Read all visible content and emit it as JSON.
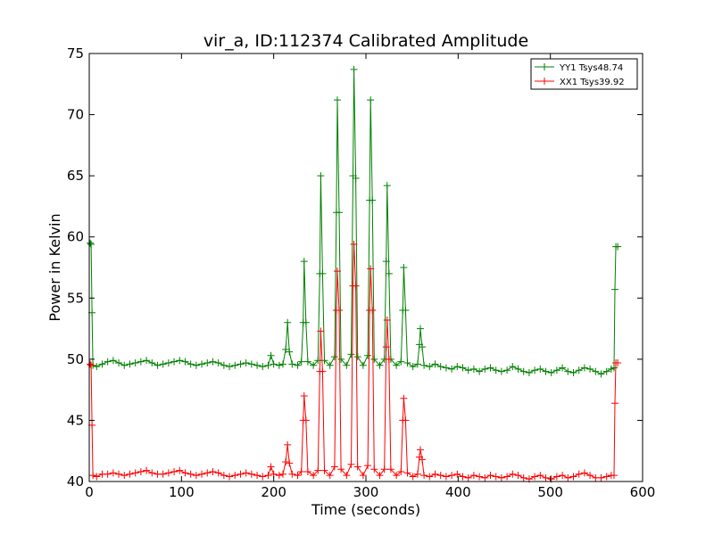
{
  "chart_data": {
    "type": "line",
    "title": "vir_a, ID:112374 Calibrated Amplitude",
    "xlabel": "Time (seconds)",
    "ylabel": "Power in Kelvin",
    "xlim": [
      0,
      600
    ],
    "ylim": [
      40,
      75
    ],
    "xticks": [
      "0",
      "100",
      "200",
      "300",
      "400",
      "500",
      "600"
    ],
    "yticks": [
      "40",
      "45",
      "50",
      "55",
      "60",
      "65",
      "70",
      "75"
    ],
    "grid": false,
    "legend_position": "top-right",
    "marker": "plus",
    "series": [
      {
        "name": "YY1 Tsys48.74",
        "color": "#008000",
        "points": [
          [
            1,
            59.5
          ],
          [
            2,
            59.4
          ],
          [
            3,
            53.8
          ],
          [
            4,
            49.5
          ],
          [
            8,
            49.4
          ],
          [
            14,
            49.6
          ],
          [
            20,
            49.8
          ],
          [
            26,
            49.9
          ],
          [
            32,
            49.7
          ],
          [
            38,
            49.5
          ],
          [
            44,
            49.6
          ],
          [
            50,
            49.7
          ],
          [
            56,
            49.8
          ],
          [
            62,
            49.9
          ],
          [
            68,
            49.7
          ],
          [
            74,
            49.5
          ],
          [
            80,
            49.6
          ],
          [
            86,
            49.7
          ],
          [
            92,
            49.8
          ],
          [
            98,
            49.9
          ],
          [
            104,
            49.8
          ],
          [
            110,
            49.6
          ],
          [
            116,
            49.5
          ],
          [
            122,
            49.6
          ],
          [
            128,
            49.7
          ],
          [
            134,
            49.8
          ],
          [
            140,
            49.7
          ],
          [
            146,
            49.5
          ],
          [
            152,
            49.4
          ],
          [
            158,
            49.5
          ],
          [
            164,
            49.6
          ],
          [
            170,
            49.7
          ],
          [
            176,
            49.6
          ],
          [
            182,
            49.5
          ],
          [
            188,
            49.4
          ],
          [
            194,
            49.5
          ],
          [
            197,
            50.3
          ],
          [
            200,
            49.6
          ],
          [
            206,
            49.5
          ],
          [
            210,
            49.6
          ],
          [
            213,
            50.8
          ],
          [
            215,
            53.0
          ],
          [
            217,
            50.6
          ],
          [
            220,
            49.6
          ],
          [
            226,
            49.5
          ],
          [
            230,
            49.8
          ],
          [
            232,
            53.0
          ],
          [
            233,
            58.0
          ],
          [
            235,
            53.0
          ],
          [
            237,
            49.8
          ],
          [
            243,
            49.5
          ],
          [
            248,
            49.9
          ],
          [
            250,
            57.0
          ],
          [
            251,
            65.0
          ],
          [
            253,
            57.0
          ],
          [
            255,
            49.9
          ],
          [
            261,
            49.5
          ],
          [
            266,
            50.2
          ],
          [
            268,
            62.0
          ],
          [
            269,
            71.2
          ],
          [
            271,
            62.0
          ],
          [
            273,
            50.0
          ],
          [
            279,
            49.5
          ],
          [
            284,
            50.4
          ],
          [
            286,
            65.0
          ],
          [
            287,
            73.7
          ],
          [
            289,
            64.8
          ],
          [
            291,
            50.2
          ],
          [
            297,
            49.5
          ],
          [
            302,
            50.3
          ],
          [
            304,
            63.0
          ],
          [
            305,
            71.2
          ],
          [
            307,
            63.0
          ],
          [
            309,
            50.0
          ],
          [
            315,
            49.5
          ],
          [
            320,
            50.0
          ],
          [
            322,
            58.0
          ],
          [
            323,
            64.2
          ],
          [
            325,
            57.0
          ],
          [
            327,
            50.0
          ],
          [
            333,
            49.5
          ],
          [
            338,
            49.8
          ],
          [
            340,
            54.0
          ],
          [
            341,
            57.5
          ],
          [
            343,
            54.0
          ],
          [
            345,
            49.7
          ],
          [
            351,
            49.4
          ],
          [
            356,
            49.6
          ],
          [
            358,
            51.2
          ],
          [
            359,
            52.5
          ],
          [
            361,
            51.0
          ],
          [
            363,
            49.5
          ],
          [
            369,
            49.4
          ],
          [
            375,
            49.6
          ],
          [
            381,
            49.4
          ],
          [
            387,
            49.3
          ],
          [
            393,
            49.2
          ],
          [
            399,
            49.4
          ],
          [
            405,
            49.3
          ],
          [
            411,
            49.1
          ],
          [
            417,
            49.2
          ],
          [
            423,
            49.0
          ],
          [
            429,
            49.2
          ],
          [
            435,
            49.3
          ],
          [
            441,
            49.1
          ],
          [
            447,
            49.0
          ],
          [
            453,
            49.1
          ],
          [
            459,
            49.4
          ],
          [
            465,
            49.2
          ],
          [
            471,
            49.0
          ],
          [
            477,
            48.9
          ],
          [
            483,
            49.1
          ],
          [
            489,
            49.2
          ],
          [
            495,
            49.0
          ],
          [
            501,
            48.9
          ],
          [
            507,
            49.1
          ],
          [
            513,
            49.3
          ],
          [
            519,
            49.0
          ],
          [
            525,
            48.9
          ],
          [
            531,
            49.1
          ],
          [
            537,
            49.3
          ],
          [
            543,
            49.2
          ],
          [
            549,
            49.0
          ],
          [
            555,
            48.8
          ],
          [
            561,
            49.0
          ],
          [
            566,
            49.2
          ],
          [
            569,
            49.3
          ],
          [
            570,
            55.7
          ],
          [
            571,
            59.2
          ],
          [
            573,
            59.2
          ]
        ]
      },
      {
        "name": "XX1 Tsys39.92",
        "color": "#ff0000",
        "points": [
          [
            1,
            49.6
          ],
          [
            2,
            49.5
          ],
          [
            3,
            44.6
          ],
          [
            4,
            40.5
          ],
          [
            8,
            40.4
          ],
          [
            14,
            40.6
          ],
          [
            20,
            40.6
          ],
          [
            26,
            40.7
          ],
          [
            32,
            40.6
          ],
          [
            38,
            40.5
          ],
          [
            44,
            40.6
          ],
          [
            50,
            40.7
          ],
          [
            56,
            40.8
          ],
          [
            62,
            40.9
          ],
          [
            68,
            40.7
          ],
          [
            74,
            40.6
          ],
          [
            80,
            40.6
          ],
          [
            86,
            40.7
          ],
          [
            92,
            40.8
          ],
          [
            98,
            40.9
          ],
          [
            104,
            40.7
          ],
          [
            110,
            40.6
          ],
          [
            116,
            40.5
          ],
          [
            122,
            40.6
          ],
          [
            128,
            40.7
          ],
          [
            134,
            40.8
          ],
          [
            140,
            40.7
          ],
          [
            146,
            40.5
          ],
          [
            152,
            40.4
          ],
          [
            158,
            40.5
          ],
          [
            164,
            40.6
          ],
          [
            170,
            40.7
          ],
          [
            176,
            40.6
          ],
          [
            182,
            40.5
          ],
          [
            188,
            40.4
          ],
          [
            194,
            40.5
          ],
          [
            197,
            41.2
          ],
          [
            200,
            40.6
          ],
          [
            206,
            40.5
          ],
          [
            210,
            40.6
          ],
          [
            213,
            41.6
          ],
          [
            215,
            43.0
          ],
          [
            217,
            41.5
          ],
          [
            220,
            40.6
          ],
          [
            226,
            40.5
          ],
          [
            230,
            40.8
          ],
          [
            232,
            45.0
          ],
          [
            233,
            47.0
          ],
          [
            235,
            45.0
          ],
          [
            237,
            40.8
          ],
          [
            243,
            40.5
          ],
          [
            248,
            40.9
          ],
          [
            250,
            49.0
          ],
          [
            251,
            52.3
          ],
          [
            253,
            49.0
          ],
          [
            255,
            40.9
          ],
          [
            261,
            40.5
          ],
          [
            266,
            41.2
          ],
          [
            268,
            54.0
          ],
          [
            269,
            57.2
          ],
          [
            271,
            54.0
          ],
          [
            273,
            41.0
          ],
          [
            279,
            40.5
          ],
          [
            284,
            41.4
          ],
          [
            286,
            56.0
          ],
          [
            287,
            59.4
          ],
          [
            289,
            56.0
          ],
          [
            291,
            41.2
          ],
          [
            297,
            40.5
          ],
          [
            302,
            41.3
          ],
          [
            304,
            54.0
          ],
          [
            305,
            57.4
          ],
          [
            307,
            54.0
          ],
          [
            309,
            41.0
          ],
          [
            315,
            40.5
          ],
          [
            320,
            41.0
          ],
          [
            322,
            51.0
          ],
          [
            323,
            53.2
          ],
          [
            325,
            50.0
          ],
          [
            327,
            41.0
          ],
          [
            333,
            40.5
          ],
          [
            338,
            40.8
          ],
          [
            340,
            45.0
          ],
          [
            341,
            46.8
          ],
          [
            343,
            45.0
          ],
          [
            345,
            40.7
          ],
          [
            351,
            40.4
          ],
          [
            356,
            40.6
          ],
          [
            358,
            42.0
          ],
          [
            359,
            42.6
          ],
          [
            361,
            41.8
          ],
          [
            363,
            40.5
          ],
          [
            369,
            40.4
          ],
          [
            375,
            40.6
          ],
          [
            381,
            40.5
          ],
          [
            387,
            40.4
          ],
          [
            393,
            40.5
          ],
          [
            399,
            40.6
          ],
          [
            405,
            40.4
          ],
          [
            411,
            40.3
          ],
          [
            417,
            40.5
          ],
          [
            423,
            40.4
          ],
          [
            429,
            40.3
          ],
          [
            435,
            40.5
          ],
          [
            441,
            40.4
          ],
          [
            447,
            40.3
          ],
          [
            453,
            40.4
          ],
          [
            459,
            40.6
          ],
          [
            465,
            40.5
          ],
          [
            471,
            40.3
          ],
          [
            477,
            40.2
          ],
          [
            483,
            40.4
          ],
          [
            489,
            40.5
          ],
          [
            495,
            40.3
          ],
          [
            501,
            40.2
          ],
          [
            507,
            40.4
          ],
          [
            513,
            40.5
          ],
          [
            519,
            40.3
          ],
          [
            525,
            40.4
          ],
          [
            531,
            40.6
          ],
          [
            537,
            40.7
          ],
          [
            543,
            40.5
          ],
          [
            549,
            40.3
          ],
          [
            555,
            40.3
          ],
          [
            561,
            40.4
          ],
          [
            566,
            40.5
          ],
          [
            569,
            40.5
          ],
          [
            570,
            46.4
          ],
          [
            571,
            49.7
          ],
          [
            573,
            49.7
          ]
        ]
      }
    ]
  }
}
